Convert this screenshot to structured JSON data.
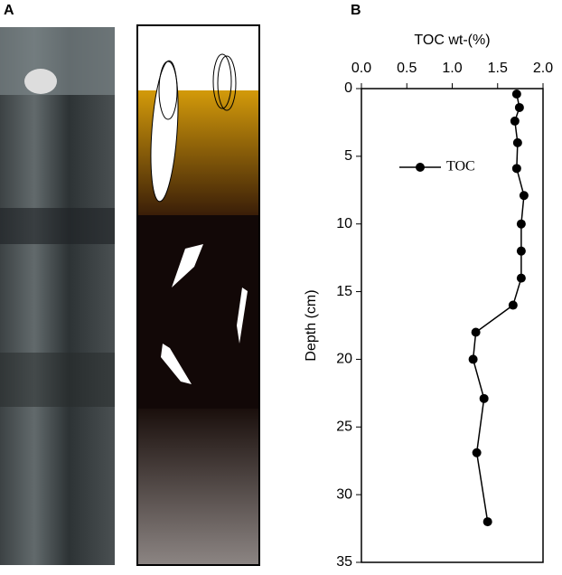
{
  "panel_labels": {
    "a": "A",
    "b": "B"
  },
  "chart_data": {
    "type": "line",
    "xlabel": "TOC wt-(%)",
    "ylabel": "Depth (cm)",
    "xlim": [
      0,
      2
    ],
    "xticks": [
      {
        "value": 0,
        "label": "0.0"
      },
      0.5,
      {
        "value": 1,
        "label": "1.0"
      },
      1.5,
      {
        "value": 2,
        "label": "2.0"
      }
    ],
    "ylim": [
      0,
      35
    ],
    "yticks": [
      0,
      5,
      10,
      15,
      20,
      25,
      30,
      35
    ],
    "y_inverted": true,
    "legend": "upper left",
    "series": [
      {
        "name": "TOC",
        "color": "#000000",
        "x": [
          1.71,
          1.74,
          1.69,
          1.72,
          1.71,
          1.79,
          1.76,
          1.76,
          1.76,
          1.67,
          1.26,
          1.23,
          1.35,
          1.27,
          1.39
        ],
        "values": [
          0.4,
          1.4,
          2.4,
          4.0,
          5.9,
          7.9,
          10.0,
          12.0,
          14.0,
          16.0,
          18.0,
          20.0,
          22.9,
          26.9,
          32.0
        ]
      }
    ]
  }
}
